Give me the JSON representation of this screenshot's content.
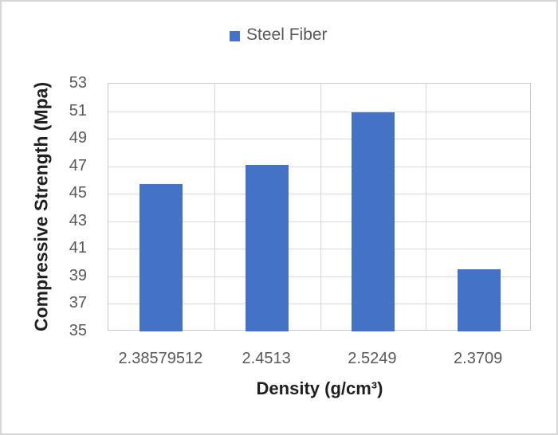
{
  "chart_data": {
    "type": "bar",
    "title": "",
    "legend": [
      "Steel Fiber"
    ],
    "legend_position": "top-center",
    "categories": [
      "2.38579512",
      "2.4513",
      "2.5249",
      "2.3709"
    ],
    "series": [
      {
        "name": "Steel Fiber",
        "values": [
          45.7,
          47.1,
          50.9,
          39.5
        ],
        "color": "#4472C4"
      }
    ],
    "xlabel": "Density (g/cm³)",
    "ylabel": "Compressive Strength (Mpa)",
    "ylim": [
      35,
      53
    ],
    "ytick_step": 2,
    "yticks": [
      35,
      37,
      39,
      41,
      43,
      45,
      47,
      49,
      51,
      53
    ],
    "grid": true,
    "colors": {
      "bar": "#4472C4",
      "gridline": "#d9d9d9",
      "plot_border": "#c9c9c9",
      "tick_text": "#595959",
      "title_text": "#1f1f1f",
      "legend_text": "#595959"
    }
  }
}
